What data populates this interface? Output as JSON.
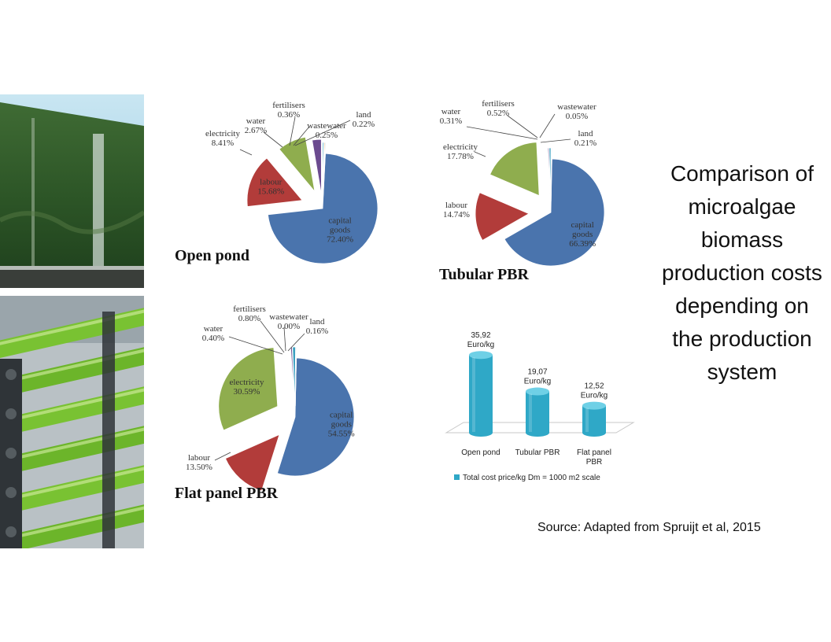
{
  "slide": {
    "title": "Comparison of microalgae biomass production costs depending on the production system",
    "source": "Source: Adapted from Spruijt et al, 2015"
  },
  "photos": [
    {
      "name": "flat-panel-reactor-photo"
    },
    {
      "name": "tubular-reactor-photo"
    }
  ],
  "chart_data": [
    {
      "type": "pie",
      "title": "Open pond",
      "slices": [
        {
          "name": "capital goods",
          "value": 72.4,
          "label": "72.40%",
          "color": "#4a74ad"
        },
        {
          "name": "labour",
          "value": 15.68,
          "label": "15.68%",
          "color": "#b23c3a"
        },
        {
          "name": "electricity",
          "value": 8.41,
          "label": "8.41%",
          "color": "#8fad4e"
        },
        {
          "name": "water",
          "value": 2.67,
          "label": "2.67%",
          "color": "#6b4a8f"
        },
        {
          "name": "fertilisers",
          "value": 0.36,
          "label": "0.36%",
          "color": "#3a9fc0"
        },
        {
          "name": "wastewater",
          "value": 0.25,
          "label": "0.25%",
          "color": "#e08a2a"
        },
        {
          "name": "land",
          "value": 0.22,
          "label": "0.22%",
          "color": "#8aa2c8"
        }
      ]
    },
    {
      "type": "pie",
      "title": "Tubular PBR",
      "slices": [
        {
          "name": "capital goods",
          "value": 66.39,
          "label": "66.39%",
          "color": "#4a74ad"
        },
        {
          "name": "labour",
          "value": 14.74,
          "label": "14.74%",
          "color": "#b23c3a"
        },
        {
          "name": "electricity",
          "value": 17.78,
          "label": "17.78%",
          "color": "#8fad4e"
        },
        {
          "name": "water",
          "value": 0.31,
          "label": "0.31%",
          "color": "#6b4a8f"
        },
        {
          "name": "fertilisers",
          "value": 0.52,
          "label": "0.52%",
          "color": "#3a9fc0"
        },
        {
          "name": "wastewater",
          "value": 0.05,
          "label": "0.05%",
          "color": "#e08a2a"
        },
        {
          "name": "land",
          "value": 0.21,
          "label": "0.21%",
          "color": "#8aa2c8"
        }
      ]
    },
    {
      "type": "pie",
      "title": "Flat panel PBR",
      "slices": [
        {
          "name": "capital goods",
          "value": 54.55,
          "label": "54.55%",
          "color": "#4a74ad"
        },
        {
          "name": "labour",
          "value": 13.5,
          "label": "13.50%",
          "color": "#b23c3a"
        },
        {
          "name": "electricity",
          "value": 30.59,
          "label": "30.59%",
          "color": "#8fad4e"
        },
        {
          "name": "water",
          "value": 0.4,
          "label": "0.40%",
          "color": "#6b4a8f"
        },
        {
          "name": "fertilisers",
          "value": 0.8,
          "label": "0.80%",
          "color": "#3a9fc0"
        },
        {
          "name": "wastewater",
          "value": 0.0,
          "label": "0.00%",
          "color": "#e08a2a"
        },
        {
          "name": "land",
          "value": 0.16,
          "label": "0.16%",
          "color": "#8aa2c8"
        }
      ]
    },
    {
      "type": "bar",
      "categories": [
        "Open pond",
        "Tubular PBR",
        "Flat panel PBR"
      ],
      "values": [
        35.92,
        19.07,
        12.52
      ],
      "data_labels": [
        "35,92",
        "19,07",
        "12,52"
      ],
      "unit_label": "Euro/kg",
      "legend": "Total cost price/kg Dm = 1000 m2 scale",
      "legend_position": "bottom",
      "shape": "cylinder-3d",
      "color": "#2fa8c7"
    }
  ]
}
